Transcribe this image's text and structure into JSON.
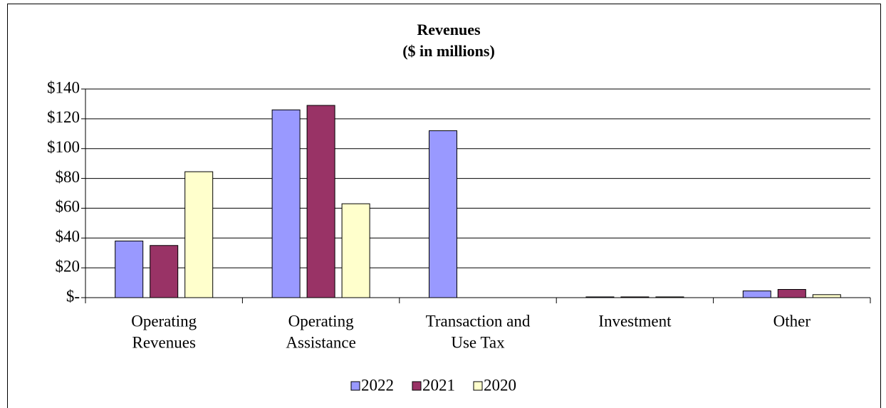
{
  "chart_data": {
    "type": "bar",
    "title": "Revenues",
    "subtitle": "($ in millions)",
    "categories": [
      [
        "Operating",
        "Revenues"
      ],
      [
        "Operating",
        "Assistance"
      ],
      [
        "Transaction and",
        "Use Tax"
      ],
      [
        "Investment"
      ],
      [
        "Other"
      ]
    ],
    "series": [
      {
        "name": "2022",
        "color": "#9999ff",
        "values": [
          38,
          126,
          112,
          0.5,
          4.5
        ]
      },
      {
        "name": "2021",
        "color": "#993366",
        "values": [
          35,
          129,
          0,
          0.5,
          5.5
        ]
      },
      {
        "name": "2020",
        "color": "#ffffcc",
        "values": [
          84.5,
          63,
          0,
          0.5,
          2
        ]
      }
    ],
    "ylim": [
      0,
      140
    ],
    "yticks": [
      {
        "value": 0,
        "label": "$-"
      },
      {
        "value": 20,
        "label": "$20"
      },
      {
        "value": 40,
        "label": "$40"
      },
      {
        "value": 60,
        "label": "$60"
      },
      {
        "value": 80,
        "label": "$80"
      },
      {
        "value": 100,
        "label": "$100"
      },
      {
        "value": 120,
        "label": "$120"
      },
      {
        "value": 140,
        "label": "$140"
      }
    ],
    "grid": true,
    "legend": "bottom"
  }
}
